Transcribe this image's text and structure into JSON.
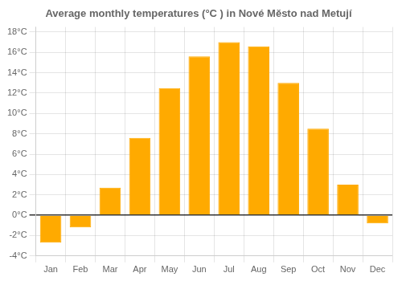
{
  "chart_data": {
    "type": "bar",
    "title": "Average monthly temperatures (°C ) in Nové Město nad Metují",
    "categories": [
      "Jan",
      "Feb",
      "Mar",
      "Apr",
      "May",
      "Jun",
      "Jul",
      "Aug",
      "Sep",
      "Oct",
      "Nov",
      "Dec"
    ],
    "values": [
      -2.7,
      -1.2,
      2.7,
      7.6,
      12.5,
      15.6,
      17.0,
      16.6,
      13.0,
      8.5,
      3.0,
      -0.8
    ],
    "color": "#FFAA00",
    "ylim": [
      -4,
      18.5
    ],
    "yticks": [
      {
        "value": -4,
        "label": "-4°C"
      },
      {
        "value": -2,
        "label": "-2°C"
      },
      {
        "value": 0,
        "label": "0°C"
      },
      {
        "value": 2,
        "label": "2°C"
      },
      {
        "value": 4,
        "label": "4°C"
      },
      {
        "value": 6,
        "label": "6°C"
      },
      {
        "value": 8,
        "label": "8°C"
      },
      {
        "value": 10,
        "label": "10°C"
      },
      {
        "value": 12,
        "label": "12°C"
      },
      {
        "value": 14,
        "label": "14°C"
      },
      {
        "value": 16,
        "label": "16°C"
      },
      {
        "value": 18,
        "label": "18°C"
      }
    ],
    "grid": true
  }
}
